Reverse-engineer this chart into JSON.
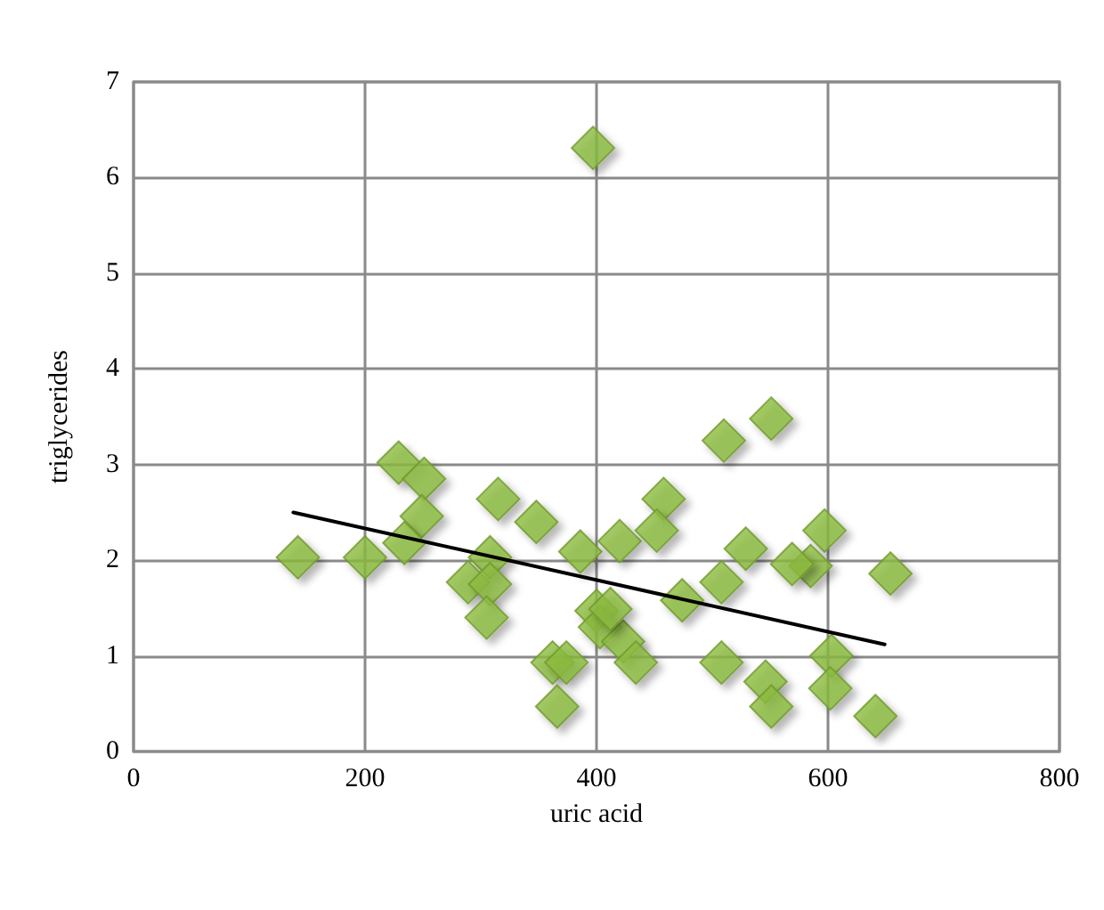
{
  "chart_data": {
    "type": "scatter",
    "xlabel": "uric acid",
    "ylabel": "triglycerides",
    "xlim": [
      0,
      800
    ],
    "xticks": [
      0,
      200,
      400,
      600,
      800
    ],
    "ylim": [
      0,
      7
    ],
    "yticks": [
      0,
      1,
      2,
      3,
      4,
      5,
      6,
      7
    ],
    "grid": true,
    "marker": "diamond",
    "series": [
      {
        "color": "#8cbc3f",
        "x": [
          142,
          200,
          229,
          251,
          249,
          234,
          315,
          348,
          386,
          420,
          308,
          289,
          308,
          305,
          362,
          374,
          366,
          400,
          403,
          423,
          510,
          551,
          458,
          452,
          529,
          597,
          585,
          569,
          654,
          508,
          474,
          412,
          434,
          508,
          546,
          551,
          603,
          602,
          641,
          397
        ],
        "values": [
          2.03,
          2.03,
          3.02,
          2.85,
          2.46,
          2.18,
          2.64,
          2.4,
          2.09,
          2.2,
          2.03,
          1.77,
          1.75,
          1.4,
          0.93,
          0.93,
          0.47,
          1.47,
          1.3,
          1.15,
          3.25,
          3.48,
          2.64,
          2.31,
          2.12,
          2.31,
          1.94,
          1.96,
          1.86,
          1.77,
          1.58,
          1.49,
          0.93,
          0.93,
          0.73,
          0.47,
          1.0,
          0.66,
          0.37,
          6.31
        ]
      },
      {
        "type": "line",
        "color": "#000000",
        "marker": "none",
        "x": [
          138,
          649
        ],
        "values": [
          2.5,
          1.12
        ]
      }
    ]
  }
}
